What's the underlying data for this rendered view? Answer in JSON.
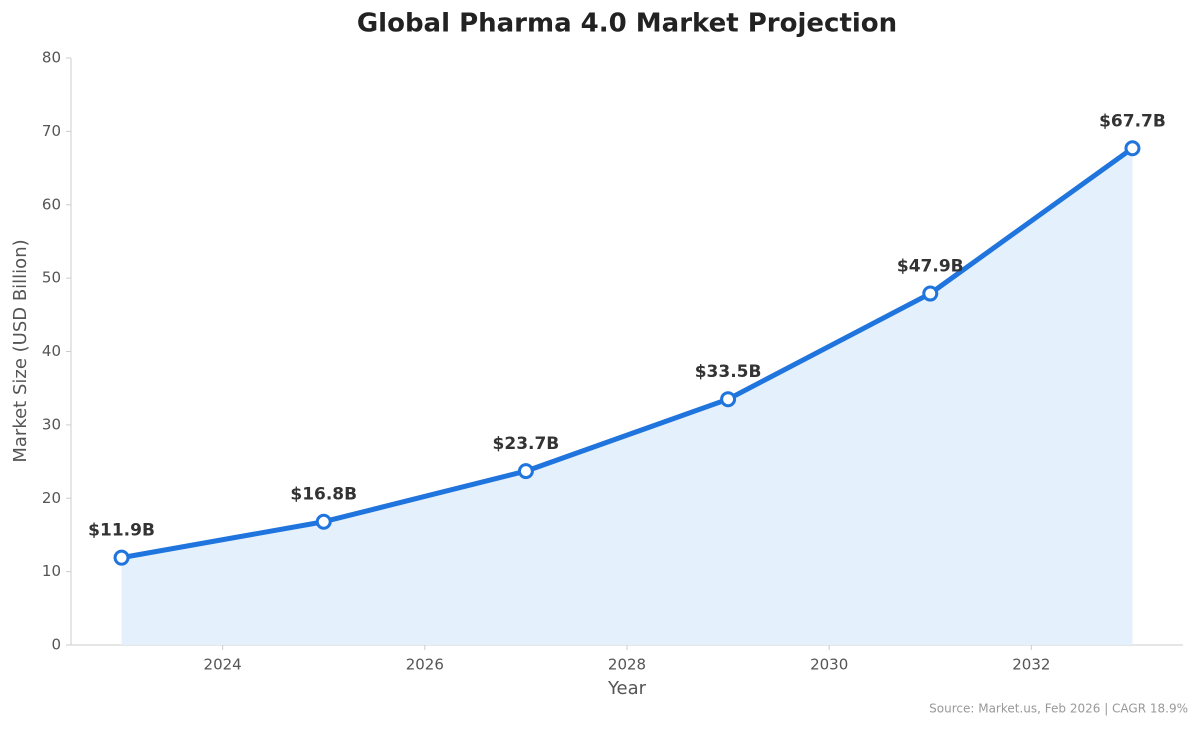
{
  "chart_data": {
    "type": "line",
    "title": "Global Pharma 4.0 Market Projection",
    "x_label": "Year",
    "y_label": "Market Size (USD Billion)",
    "x": [
      2023,
      2025,
      2027,
      2029,
      2031,
      2033
    ],
    "values": [
      11.9,
      16.8,
      23.7,
      33.5,
      47.9,
      67.7
    ],
    "value_labels": [
      "$11.9B",
      "$16.8B",
      "$23.7B",
      "$33.5B",
      "$47.9B",
      "$67.7B"
    ],
    "color": "#1f74dd",
    "area_color": "#e5f0fd",
    "xlim": [
      2022.5,
      2033.5
    ],
    "xticks": [
      2024,
      2026,
      2028,
      2030,
      2032
    ],
    "ylim": [
      0,
      80
    ],
    "yticks": [
      0,
      10,
      20,
      30,
      40,
      50,
      60,
      70,
      80
    ],
    "grid": false,
    "source": "Source: Market.us, Feb 2026 | CAGR 18.9%"
  }
}
